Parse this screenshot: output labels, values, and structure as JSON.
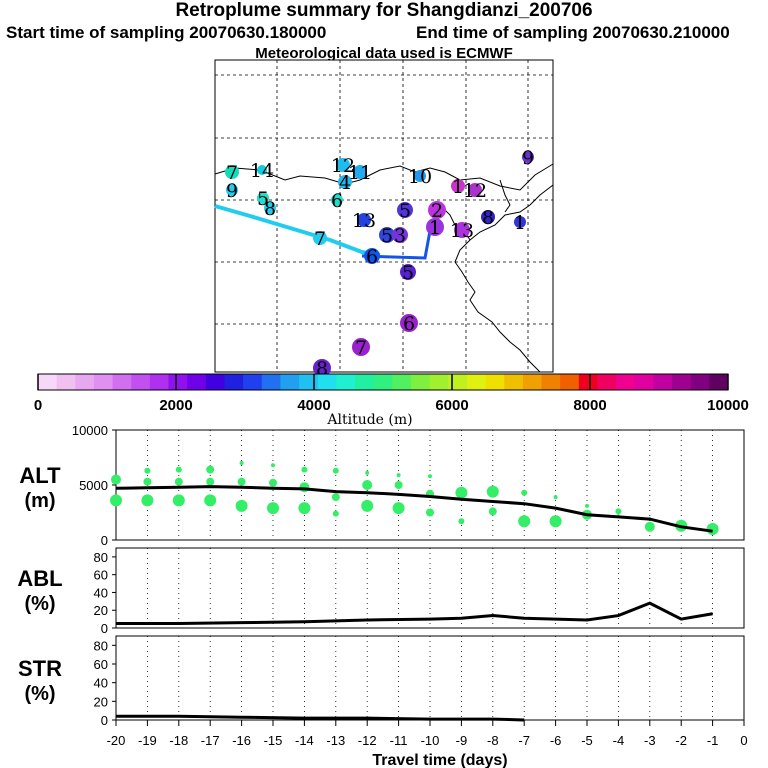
{
  "header": {
    "title": "Retroplume summary for Shangdianzi_200706",
    "start_label": "Start time of sampling 20070630.180000",
    "end_label": "End time of sampling 20070630.210000",
    "met_label": "Meteorological data used is ECMWF"
  },
  "colors": {
    "map_line": "#000000",
    "grid": "#000000",
    "trajectory_main": "#22ccee",
    "trajectory_low": "#1155ee",
    "alt_points": "#33ee66",
    "profile_line": "#000000"
  },
  "map": {
    "markers": [
      {
        "label": "7",
        "color": "#11ddbb"
      },
      {
        "label": "14",
        "color": "#11ccdd"
      },
      {
        "label": "9",
        "color": "#22ccee"
      },
      {
        "label": "5",
        "color": "#22ddcc"
      },
      {
        "label": "8",
        "color": "#22ccee"
      },
      {
        "label": "12",
        "color": "#22bbee"
      },
      {
        "label": "4",
        "color": "#22bbee"
      },
      {
        "label": "11",
        "color": "#22aaee"
      },
      {
        "label": "6",
        "color": "#22ddcc"
      },
      {
        "label": "10",
        "color": "#2299ee"
      },
      {
        "label": "13",
        "color": "#2244dd"
      },
      {
        "label": "7",
        "color": "#22ccee"
      },
      {
        "label": "6",
        "color": "#1155ee"
      },
      {
        "label": "5",
        "color": "#3344dd"
      },
      {
        "label": "3",
        "color": "#7733dd"
      },
      {
        "label": "1",
        "color": "#9933dd"
      },
      {
        "label": "2",
        "color": "#bb33dd"
      },
      {
        "label": "9",
        "color": "#6633cc"
      },
      {
        "label": "5",
        "color": "#5533dd"
      },
      {
        "label": "13",
        "color": "#aa33dd"
      },
      {
        "label": "8",
        "color": "#3322cc"
      },
      {
        "label": "1",
        "color": "#3333dd"
      },
      {
        "label": "5",
        "color": "#5522cc"
      },
      {
        "label": "6",
        "color": "#9922cc"
      },
      {
        "label": "7",
        "color": "#9922cc"
      },
      {
        "label": "8",
        "color": "#6622cc"
      },
      {
        "label": "1",
        "color": "#cc33cc"
      },
      {
        "label": "12",
        "color": "#aa33cc"
      }
    ]
  },
  "colorbar": {
    "ticks": [
      "0",
      "2000",
      "4000",
      "6000",
      "8000",
      "10000"
    ],
    "label": "Altitude (m)",
    "colors": [
      "#f8d8f8",
      "#f0c0f0",
      "#e8a8f0",
      "#e090f0",
      "#d070f0",
      "#c050f0",
      "#b030f0",
      "#9010f0",
      "#7000e8",
      "#4000e0",
      "#2020e0",
      "#2040f0",
      "#2070f0",
      "#20a0f0",
      "#20c0f0",
      "#20e0f0",
      "#20f0d0",
      "#20f0a0",
      "#30f080",
      "#50f060",
      "#80f040",
      "#a0f030",
      "#c0f020",
      "#e0f010",
      "#f0e000",
      "#f0c000",
      "#f0a000",
      "#f08000",
      "#f06000",
      "#f00020",
      "#f00060",
      "#f00090",
      "#e000a0",
      "#c000a0",
      "#a00090",
      "#800080",
      "#600060"
    ]
  },
  "chart_data": [
    {
      "type": "scatter",
      "title": "ALT (m)",
      "ylabel": "ALT (m)",
      "xlabel": "Travel time (days)",
      "ylim": [
        0,
        10000
      ],
      "yticks": [
        "0",
        "5000",
        "10000"
      ],
      "x_ticks": [
        "-20",
        "-19",
        "-18",
        "-17",
        "-16",
        "-15",
        "-14",
        "-13",
        "-12",
        "-11",
        "-10",
        "-9",
        "-8",
        "-7",
        "-6",
        "-5",
        "-4",
        "-3",
        "-2",
        "-1",
        "0"
      ],
      "line": {
        "name": "mean altitude",
        "x": [
          -20,
          -19,
          -18,
          -17,
          -16,
          -15,
          -14,
          -13,
          -12,
          -11,
          -10,
          -9,
          -8,
          -7,
          -6,
          -5,
          -4,
          -3,
          -2,
          -1
        ],
        "y": [
          4700,
          4750,
          4800,
          4850,
          4800,
          4700,
          4650,
          4400,
          4300,
          4150,
          3950,
          3700,
          3500,
          3300,
          2900,
          2300,
          2100,
          1900,
          1200,
          800
        ]
      },
      "points": {
        "x": [
          -20,
          -20,
          -19,
          -19,
          -19,
          -18,
          -18,
          -18,
          -17,
          -17,
          -17,
          -16,
          -16,
          -16,
          -15,
          -15,
          -15,
          -14,
          -14,
          -14,
          -13,
          -13,
          -13,
          -12,
          -12,
          -12,
          -11,
          -11,
          -11,
          -10,
          -10,
          -10,
          -9,
          -9,
          -8,
          -8,
          -7,
          -7,
          -6,
          -6,
          -5,
          -5,
          -4,
          -4,
          -3,
          -3,
          -2,
          -1
        ],
        "y": [
          5500,
          3600,
          6300,
          5300,
          3600,
          6400,
          5300,
          3600,
          6400,
          5300,
          3600,
          7000,
          5300,
          3100,
          6800,
          5200,
          2900,
          6400,
          4800,
          2900,
          6300,
          3900,
          2400,
          6100,
          5000,
          3100,
          5900,
          5000,
          2900,
          5800,
          4200,
          2500,
          4300,
          1700,
          4400,
          2600,
          4300,
          1700,
          3900,
          1700,
          3100,
          2300,
          2300,
          2600,
          2000,
          1200,
          1300,
          1000
        ],
        "size": [
          5,
          6,
          3,
          4,
          6,
          3,
          4,
          6,
          4,
          4,
          6,
          2,
          4,
          6,
          2,
          4,
          6,
          3,
          5,
          6,
          3,
          4,
          3,
          2,
          5,
          6,
          2,
          4,
          6,
          2,
          4,
          4,
          6,
          3,
          6,
          4,
          3,
          6,
          2,
          6,
          2,
          5,
          1,
          3,
          1,
          5,
          6,
          6
        ]
      }
    },
    {
      "type": "line",
      "title": "ABL (%)",
      "ylabel": "ABL (%)",
      "ylim": [
        0,
        90
      ],
      "yticks": [
        "0",
        "20",
        "40",
        "60",
        "80"
      ],
      "x": [
        -20,
        -18,
        -16,
        -14,
        -12,
        -10,
        -9,
        -8,
        -7,
        -6,
        -5,
        -4,
        -3,
        -2,
        -1
      ],
      "y": [
        5,
        5,
        6,
        7,
        9,
        10,
        11,
        14,
        11,
        10,
        9,
        14,
        28,
        10,
        16
      ]
    },
    {
      "type": "line",
      "title": "STR (%)",
      "ylabel": "STR (%)",
      "ylim": [
        0,
        90
      ],
      "yticks": [
        "0",
        "20",
        "40",
        "60",
        "80"
      ],
      "x": [
        -20,
        -18,
        -16,
        -14,
        -12,
        -10,
        -8,
        -7
      ],
      "y": [
        4,
        4,
        3,
        2,
        2,
        1,
        1,
        0
      ]
    }
  ]
}
